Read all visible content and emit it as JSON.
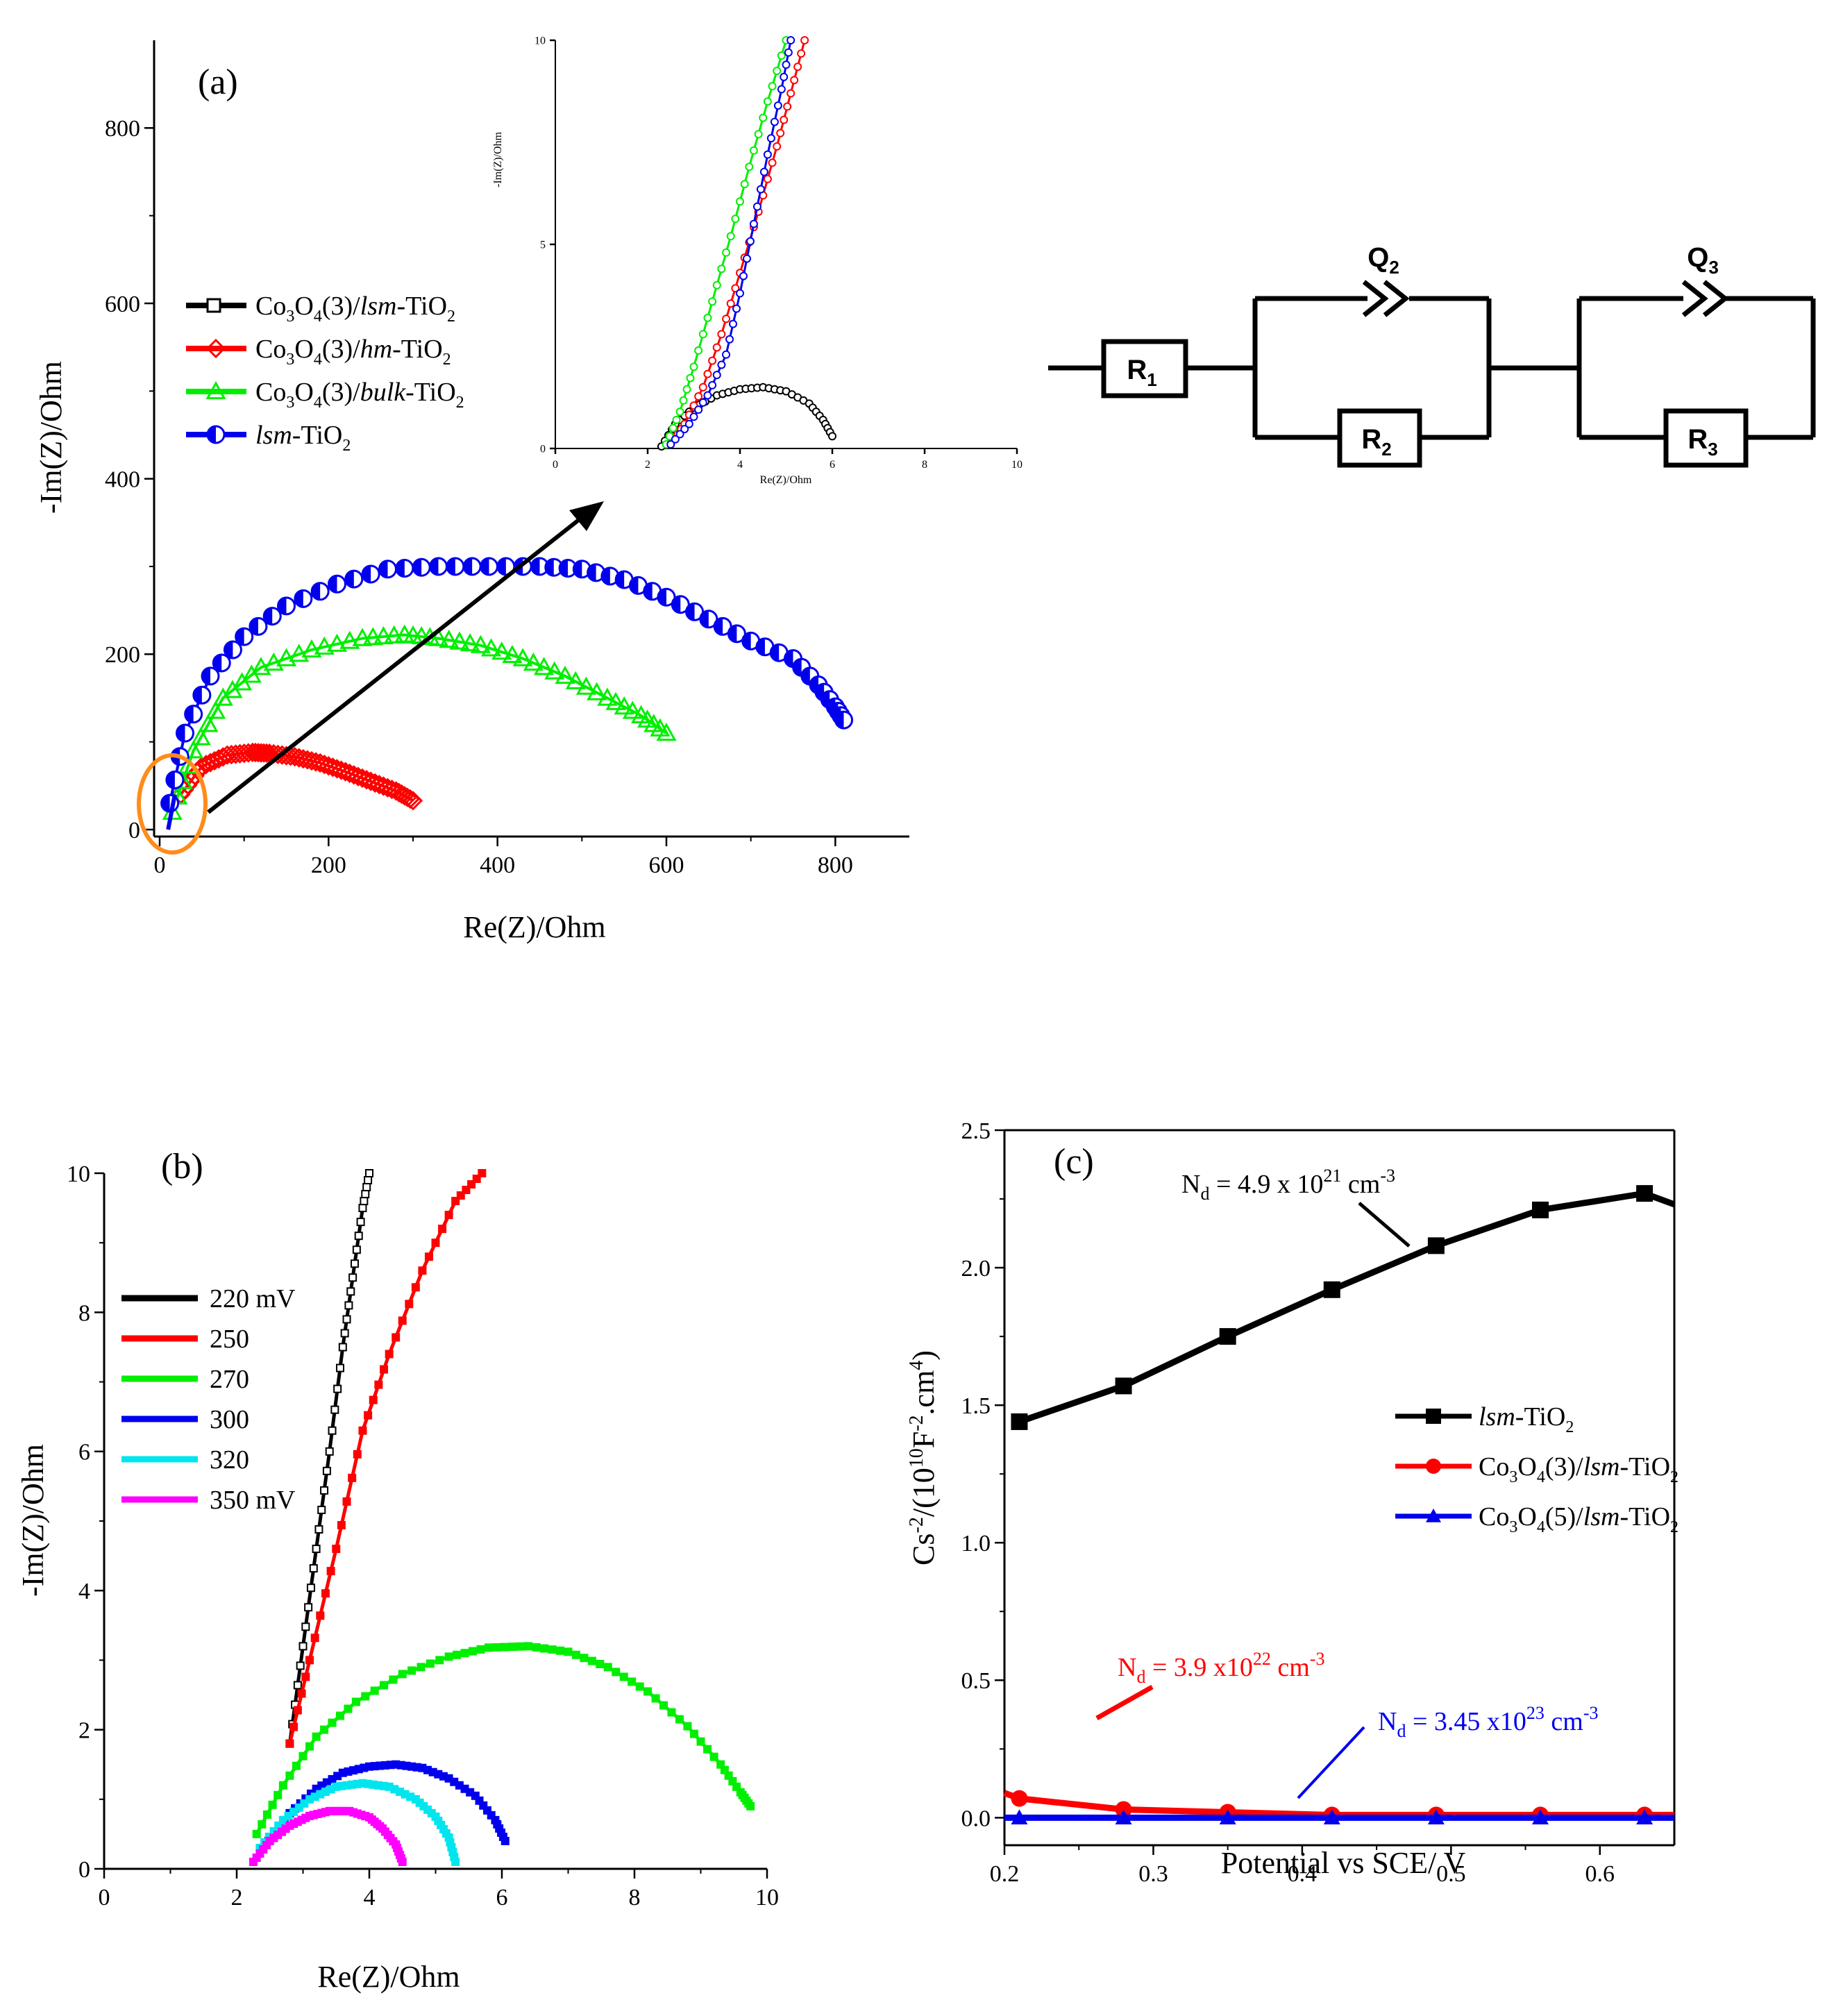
{
  "figure": {
    "panel_a": "(a)",
    "panel_b": "(b)",
    "panel_c": "(c)"
  },
  "chart_data": [
    {
      "id": "a",
      "type": "scatter",
      "title": "(a)",
      "xlabel": "Re(Z)/Ohm",
      "ylabel": "-Im(Z)/Ohm",
      "xlim": [
        -10,
        900
      ],
      "ylim": [
        -10,
        900
      ],
      "xticks": [
        0,
        200,
        400,
        600,
        800
      ],
      "yticks": [
        0,
        200,
        400,
        600,
        800
      ],
      "legend": {
        "placement": "left",
        "entries": [
          {
            "base": "Co",
            "s1": "3",
            "mid": "O",
            "s2": "4",
            "rest": "(3)/",
            "ital": "lsm",
            "tail": "-TiO",
            "s3": "2"
          },
          {
            "base": "Co",
            "s1": "3",
            "mid": "O",
            "s2": "4",
            "rest": "(3)/",
            "ital": "hm",
            "tail": "-TiO",
            "s3": "2"
          },
          {
            "base": "Co",
            "s1": "3",
            "mid": "O",
            "s2": "4",
            "rest": "(3)/",
            "ital": "bulk",
            "tail": "-TiO",
            "s3": "2"
          },
          {
            "base": "",
            "s1": "",
            "mid": "",
            "s2": "",
            "rest": "",
            "ital": "lsm",
            "tail": "-TiO",
            "s3": "2"
          }
        ]
      },
      "series": [
        {
          "name": "Co3O4(3)/hm-TiO2",
          "color": "#ff0000",
          "marker": "diamond-open",
          "x": [
            25,
            50,
            80,
            110,
            130,
            160,
            190,
            220,
            250,
            280,
            300
          ],
          "y": [
            40,
            72,
            85,
            88,
            87,
            83,
            76,
            66,
            55,
            44,
            33
          ]
        },
        {
          "name": "Co3O4(3)/bulk-TiO2",
          "color": "#00ee00",
          "marker": "triangle-open",
          "x": [
            15,
            40,
            75,
            120,
            180,
            240,
            290,
            330,
            380,
            430,
            480,
            530,
            570,
            600
          ],
          "y": [
            20,
            90,
            150,
            185,
            205,
            218,
            222,
            218,
            210,
            195,
            175,
            150,
            130,
            110
          ]
        },
        {
          "name": "lsm-TiO2",
          "color": "#0000ee",
          "marker": "circle-half",
          "x": [
            12,
            30,
            60,
            100,
            150,
            210,
            270,
            330,
            390,
            450,
            500,
            550,
            600,
            650,
            700,
            750,
            780,
            800,
            810
          ],
          "y": [
            30,
            110,
            175,
            220,
            255,
            280,
            297,
            300,
            300,
            300,
            297,
            285,
            265,
            240,
            215,
            195,
            165,
            140,
            125
          ]
        }
      ],
      "annotations": [
        "orange circle at origin region",
        "arrow to inset"
      ]
    },
    {
      "id": "a-inset",
      "type": "scatter",
      "xlabel": "Re(Z)/Ohm",
      "ylabel": "-Im(Z)/Ohm",
      "xlim": [
        0,
        10
      ],
      "ylim": [
        0,
        10
      ],
      "xticks": [
        0,
        2,
        4,
        6,
        8,
        10
      ],
      "yticks": [
        0,
        5,
        10
      ],
      "series": [
        {
          "name": "Co3O4(3)/lsm-TiO2",
          "color": "#000000",
          "x": [
            2.3,
            2.6,
            3.0,
            3.5,
            4.0,
            4.5,
            5.0,
            5.5,
            5.8,
            6.0
          ],
          "y": [
            0.05,
            0.6,
            1.0,
            1.3,
            1.45,
            1.5,
            1.4,
            1.1,
            0.7,
            0.3
          ]
        },
        {
          "name": "Co3O4(3)/hm-TiO2",
          "color": "#ff0000",
          "x": [
            2.5,
            2.8,
            3.2,
            3.6,
            4.0,
            4.4,
            4.8,
            5.1,
            5.4
          ],
          "y": [
            0.1,
            0.6,
            1.5,
            2.8,
            4.3,
            5.8,
            7.4,
            8.7,
            10.0
          ]
        },
        {
          "name": "Co3O4(3)/bulk-TiO2",
          "color": "#00ee00",
          "x": [
            2.4,
            2.7,
            3.0,
            3.4,
            3.8,
            4.2,
            4.6,
            5.0
          ],
          "y": [
            0.1,
            0.9,
            2.0,
            3.6,
            5.2,
            6.9,
            8.5,
            10.0
          ]
        },
        {
          "name": "lsm-TiO2",
          "color": "#0000ee",
          "x": [
            2.5,
            2.9,
            3.3,
            3.7,
            4.0,
            4.3,
            4.6,
            4.9,
            5.1
          ],
          "y": [
            0.1,
            0.6,
            1.3,
            2.3,
            3.8,
            5.5,
            7.2,
            8.8,
            10.0
          ]
        }
      ]
    },
    {
      "id": "circuit",
      "type": "diagram",
      "labels": {
        "r1": "R",
        "r1s": "1",
        "r2": "R",
        "r2s": "2",
        "r3": "R",
        "r3s": "3",
        "q2": "Q",
        "q2s": "2",
        "q3": "Q",
        "q3s": "3"
      }
    },
    {
      "id": "b",
      "type": "line",
      "title": "(b)",
      "xlabel": "Re(Z)/Ohm",
      "ylabel": "-Im(Z)/Ohm",
      "xlim": [
        0,
        10
      ],
      "ylim": [
        0,
        10
      ],
      "xticks": [
        0,
        2,
        4,
        6,
        8,
        10
      ],
      "yticks": [
        0,
        2,
        4,
        6,
        8,
        10
      ],
      "legend": {
        "placement": "left",
        "entries": [
          "220 mV",
          "250",
          "270",
          "300",
          "320",
          "350 mV"
        ]
      },
      "series": [
        {
          "name": "220 mV",
          "color": "#000000",
          "x": [
            2.8,
            3.0,
            3.2,
            3.4,
            3.6,
            3.75,
            3.9,
            4.0
          ],
          "y": [
            1.8,
            3.2,
            4.6,
            6.0,
            7.5,
            8.5,
            9.5,
            10.0
          ]
        },
        {
          "name": "250",
          "color": "#ff0000",
          "x": [
            2.8,
            3.1,
            3.5,
            3.9,
            4.3,
            4.8,
            5.3,
            5.7
          ],
          "y": [
            1.8,
            3.0,
            4.6,
            6.3,
            7.4,
            8.6,
            9.6,
            10.0
          ]
        },
        {
          "name": "270",
          "color": "#00ee00",
          "x": [
            2.3,
            2.7,
            3.2,
            3.8,
            4.5,
            5.2,
            5.8,
            6.4,
            7.0,
            7.6,
            8.2,
            8.8,
            9.3,
            9.6,
            9.75
          ],
          "y": [
            0.5,
            1.2,
            1.9,
            2.4,
            2.8,
            3.05,
            3.18,
            3.2,
            3.12,
            2.9,
            2.55,
            2.05,
            1.5,
            1.1,
            0.9
          ]
        },
        {
          "name": "300",
          "color": "#0000ee",
          "x": [
            2.4,
            2.8,
            3.2,
            3.6,
            4.0,
            4.4,
            4.8,
            5.2,
            5.6,
            5.9,
            6.05
          ],
          "y": [
            0.3,
            0.8,
            1.15,
            1.38,
            1.47,
            1.5,
            1.45,
            1.3,
            1.05,
            0.7,
            0.4
          ]
        },
        {
          "name": "320",
          "color": "#00e5ee",
          "x": [
            2.35,
            2.7,
            3.1,
            3.5,
            3.9,
            4.3,
            4.7,
            5.0,
            5.2,
            5.3
          ],
          "y": [
            0.3,
            0.7,
            1.0,
            1.18,
            1.23,
            1.18,
            1.0,
            0.75,
            0.45,
            0.1
          ]
        },
        {
          "name": "350 mV",
          "color": "#ff00ff",
          "x": [
            2.25,
            2.5,
            2.8,
            3.1,
            3.4,
            3.7,
            4.0,
            4.2,
            4.4,
            4.5
          ],
          "y": [
            0.1,
            0.4,
            0.62,
            0.76,
            0.83,
            0.83,
            0.74,
            0.58,
            0.35,
            0.1
          ]
        }
      ]
    },
    {
      "id": "c",
      "type": "line",
      "title": "(c)",
      "xlabel": "Potential vs SCE/ V",
      "ylabel": "Cs⁻²/(10¹⁰F⁻².cm⁴)",
      "xlim": [
        0.2,
        0.65
      ],
      "ylim": [
        -0.1,
        2.5
      ],
      "xticks": [
        0.2,
        0.3,
        0.4,
        0.5,
        0.6
      ],
      "yticks": [
        0.0,
        0.5,
        1.0,
        1.5,
        2.0,
        2.5
      ],
      "legend": {
        "placement": "center-right",
        "entries": [
          {
            "base": "",
            "s1": "",
            "mid": "",
            "s2": "",
            "rest": "",
            "ital": "lsm",
            "tail": "-TiO",
            "s3": "2"
          },
          {
            "base": "Co",
            "s1": "3",
            "mid": "O",
            "s2": "4",
            "rest": "(3)/",
            "ital": "lsm",
            "tail": "-TiO",
            "s3": "2"
          },
          {
            "base": "Co",
            "s1": "3",
            "mid": "O",
            "s2": "4",
            "rest": "(5)/",
            "ital": "lsm",
            "tail": "-TiO",
            "s3": "2"
          }
        ]
      },
      "annotations": [
        {
          "text": "N",
          "sub": "d",
          "value": " = 4.9 x 10",
          "sup": "21",
          "unit": " cm",
          "usup": "-3",
          "color": "#000000"
        },
        {
          "text": "N",
          "sub": "d",
          "value": " = 3.9 x10",
          "sup": "22",
          "unit": " cm",
          "usup": "-3",
          "color": "#ff0000"
        },
        {
          "text": "N",
          "sub": "d",
          "value": " = 3.45 x10",
          "sup": "23",
          "unit": " cm",
          "usup": "-3",
          "color": "#0000ee"
        }
      ],
      "series": [
        {
          "name": "lsm-TiO2",
          "color": "#000000",
          "marker": "square",
          "x": [
            0.21,
            0.28,
            0.35,
            0.42,
            0.49,
            0.56,
            0.63,
            0.65
          ],
          "y": [
            1.44,
            1.57,
            1.75,
            1.92,
            2.08,
            2.21,
            2.27,
            2.23
          ]
        },
        {
          "name": "Co3O4(3)/lsm-TiO2",
          "color": "#ff0000",
          "marker": "circle",
          "x": [
            0.2,
            0.21,
            0.28,
            0.35,
            0.42,
            0.49,
            0.56,
            0.63,
            0.65
          ],
          "y": [
            0.09,
            0.07,
            0.03,
            0.02,
            0.01,
            0.01,
            0.01,
            0.01,
            0.01
          ]
        },
        {
          "name": "Co3O4(5)/lsm-TiO2",
          "color": "#0000ee",
          "marker": "triangle",
          "x": [
            0.2,
            0.21,
            0.28,
            0.35,
            0.42,
            0.49,
            0.56,
            0.63,
            0.65
          ],
          "y": [
            0.0,
            0.0,
            0.0,
            0.0,
            0.0,
            0.0,
            0.0,
            0.0,
            0.0
          ]
        }
      ]
    }
  ]
}
